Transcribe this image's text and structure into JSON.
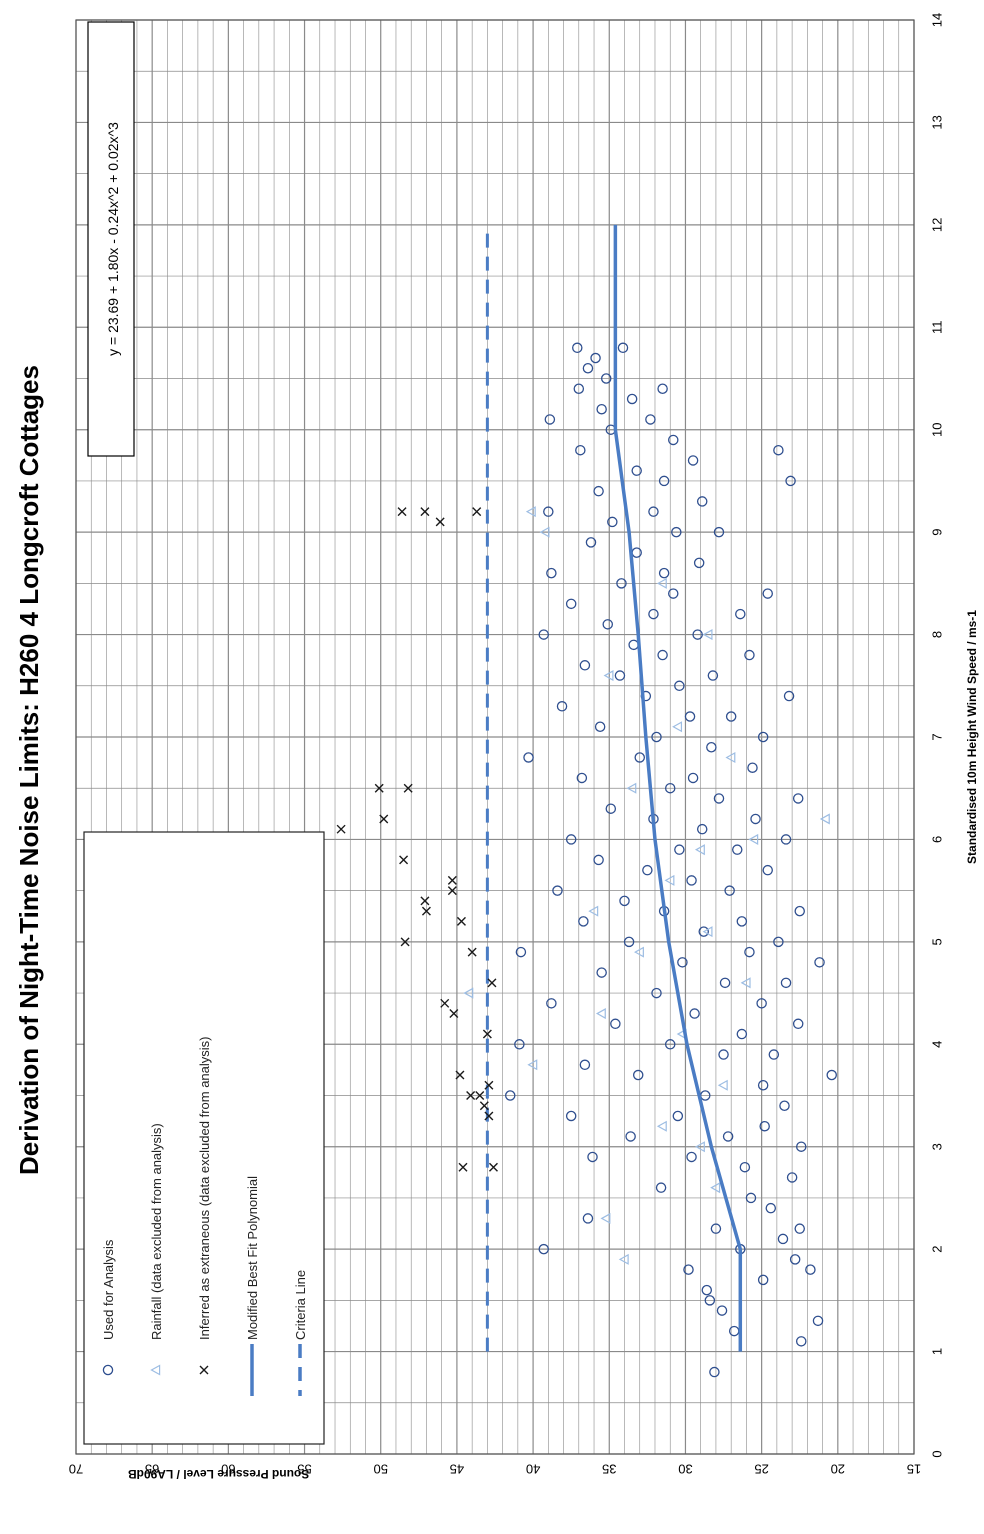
{
  "chart_data": {
    "type": "scatter",
    "title": "Derivation of Night-Time Noise Limits: H260 4 Longcroft Cottages",
    "xlabel": "Standardised  10m Height Wind Speed / ms-1",
    "ylabel": "Sound Pressure Level / LA90dB",
    "xlim": [
      0,
      14
    ],
    "ylim": [
      15,
      70
    ],
    "x_ticks": [
      "0",
      "1",
      "2",
      "3",
      "4",
      "5",
      "6",
      "7",
      "8",
      "9",
      "10",
      "11",
      "12",
      "13",
      "14"
    ],
    "y_ticks": [
      "70",
      "65",
      "60",
      "55",
      "50",
      "45",
      "40",
      "35",
      "30",
      "25",
      "20",
      "15"
    ],
    "grid": true,
    "equation": "y = 23.69 + 1.80x - 0.24x^2 + 0.02x^3",
    "legend": {
      "placement": "lower-left",
      "entries": [
        {
          "label": "Used for Analysis",
          "marker": "circle"
        },
        {
          "label": "Rainfall (data excluded from analysis)",
          "marker": "triangle"
        },
        {
          "label": "Inferred as extraneous (data excluded from analysis)",
          "marker": "x"
        },
        {
          "label": "Modified Best Fit Polynomial",
          "marker": "solid-line"
        },
        {
          "label": "Criteria Line",
          "marker": "dashed-line"
        }
      ]
    },
    "colors": {
      "used": "#2f4f8f",
      "rainfall": "#9dbde3",
      "extraneous": "#1a1a1a",
      "fit": "#4a7cc4",
      "criteria": "#4a7cc4",
      "grid": "#8a8a8a"
    },
    "series": [
      {
        "name": "Used for Analysis",
        "points": [
          [
            0.8,
            28.1
          ],
          [
            1.1,
            22.4
          ],
          [
            1.2,
            26.8
          ],
          [
            1.3,
            21.3
          ],
          [
            1.4,
            27.6
          ],
          [
            1.5,
            28.4
          ],
          [
            1.6,
            28.6
          ],
          [
            1.7,
            24.9
          ],
          [
            1.8,
            21.8
          ],
          [
            1.8,
            29.8
          ],
          [
            1.9,
            22.8
          ],
          [
            2.0,
            26.4
          ],
          [
            2.0,
            39.3
          ],
          [
            2.1,
            23.6
          ],
          [
            2.2,
            28.0
          ],
          [
            2.2,
            22.5
          ],
          [
            2.3,
            36.4
          ],
          [
            2.4,
            24.4
          ],
          [
            2.5,
            25.7
          ],
          [
            2.6,
            31.6
          ],
          [
            2.7,
            23.0
          ],
          [
            2.8,
            26.1
          ],
          [
            2.9,
            36.1
          ],
          [
            2.9,
            29.6
          ],
          [
            3.0,
            22.4
          ],
          [
            3.1,
            33.6
          ],
          [
            3.1,
            27.2
          ],
          [
            3.2,
            24.8
          ],
          [
            3.3,
            37.5
          ],
          [
            3.3,
            30.5
          ],
          [
            3.4,
            23.5
          ],
          [
            3.5,
            41.5
          ],
          [
            3.5,
            28.7
          ],
          [
            3.6,
            24.9
          ],
          [
            3.7,
            33.1
          ],
          [
            3.7,
            20.4
          ],
          [
            3.8,
            36.6
          ],
          [
            3.9,
            27.5
          ],
          [
            3.9,
            24.2
          ],
          [
            4.0,
            31.0
          ],
          [
            4.0,
            40.9
          ],
          [
            4.1,
            26.3
          ],
          [
            4.2,
            22.6
          ],
          [
            4.2,
            34.6
          ],
          [
            4.3,
            29.4
          ],
          [
            4.4,
            25.0
          ],
          [
            4.4,
            38.8
          ],
          [
            4.5,
            31.9
          ],
          [
            4.6,
            23.4
          ],
          [
            4.6,
            27.4
          ],
          [
            4.7,
            35.5
          ],
          [
            4.8,
            21.2
          ],
          [
            4.8,
            30.2
          ],
          [
            4.9,
            25.8
          ],
          [
            4.9,
            40.8
          ],
          [
            5.0,
            33.7
          ],
          [
            5.0,
            23.9
          ],
          [
            5.1,
            28.8
          ],
          [
            5.2,
            36.7
          ],
          [
            5.2,
            26.3
          ],
          [
            5.3,
            31.4
          ],
          [
            5.3,
            22.5
          ],
          [
            5.4,
            34.0
          ],
          [
            5.5,
            27.1
          ],
          [
            5.5,
            38.4
          ],
          [
            5.6,
            29.6
          ],
          [
            5.7,
            24.6
          ],
          [
            5.7,
            32.5
          ],
          [
            5.8,
            35.7
          ],
          [
            5.9,
            26.6
          ],
          [
            5.9,
            30.4
          ],
          [
            6.0,
            23.4
          ],
          [
            6.0,
            37.5
          ],
          [
            6.1,
            28.9
          ],
          [
            6.2,
            32.1
          ],
          [
            6.2,
            25.4
          ],
          [
            6.3,
            34.9
          ],
          [
            6.4,
            27.8
          ],
          [
            6.4,
            22.6
          ],
          [
            6.5,
            31.0
          ],
          [
            6.6,
            36.8
          ],
          [
            6.6,
            29.5
          ],
          [
            6.7,
            25.6
          ],
          [
            6.8,
            33.0
          ],
          [
            6.8,
            40.3
          ],
          [
            6.9,
            28.3
          ],
          [
            7.0,
            31.9
          ],
          [
            7.0,
            24.9
          ],
          [
            7.1,
            35.6
          ],
          [
            7.2,
            29.7
          ],
          [
            7.2,
            27.0
          ],
          [
            7.3,
            38.1
          ],
          [
            7.4,
            32.6
          ],
          [
            7.4,
            23.2
          ],
          [
            7.5,
            30.4
          ],
          [
            7.6,
            34.3
          ],
          [
            7.6,
            28.2
          ],
          [
            7.7,
            36.6
          ],
          [
            7.8,
            31.5
          ],
          [
            7.8,
            25.8
          ],
          [
            7.9,
            33.4
          ],
          [
            8.0,
            39.3
          ],
          [
            8.0,
            29.2
          ],
          [
            8.1,
            35.1
          ],
          [
            8.2,
            32.1
          ],
          [
            8.2,
            26.4
          ],
          [
            8.3,
            37.5
          ],
          [
            8.4,
            30.8
          ],
          [
            8.4,
            24.6
          ],
          [
            8.5,
            34.2
          ],
          [
            8.6,
            31.4
          ],
          [
            8.6,
            38.8
          ],
          [
            8.7,
            29.1
          ],
          [
            8.8,
            33.2
          ],
          [
            8.9,
            36.2
          ],
          [
            9.0,
            30.6
          ],
          [
            9.0,
            27.8
          ],
          [
            9.1,
            34.8
          ],
          [
            9.2,
            39.0
          ],
          [
            9.2,
            32.1
          ],
          [
            9.3,
            28.9
          ],
          [
            9.4,
            35.7
          ],
          [
            9.5,
            31.4
          ],
          [
            9.5,
            23.1
          ],
          [
            9.6,
            33.2
          ],
          [
            9.7,
            29.5
          ],
          [
            9.8,
            36.9
          ],
          [
            9.8,
            23.9
          ],
          [
            9.9,
            30.8
          ],
          [
            10.0,
            34.9
          ],
          [
            10.1,
            32.3
          ],
          [
            10.1,
            38.9
          ],
          [
            10.2,
            35.5
          ],
          [
            10.3,
            33.5
          ],
          [
            10.4,
            31.5
          ],
          [
            10.4,
            37.0
          ],
          [
            10.5,
            35.2
          ],
          [
            10.6,
            36.4
          ],
          [
            10.7,
            35.9
          ],
          [
            10.8,
            34.1
          ],
          [
            10.8,
            37.1
          ]
        ]
      },
      {
        "name": "Rainfall (data excluded from analysis)",
        "points": [
          [
            1.9,
            34.0
          ],
          [
            2.3,
            35.2
          ],
          [
            2.6,
            28.0
          ],
          [
            3.0,
            29.0
          ],
          [
            3.2,
            31.5
          ],
          [
            3.6,
            27.5
          ],
          [
            3.8,
            40.0
          ],
          [
            4.1,
            30.2
          ],
          [
            4.3,
            35.5
          ],
          [
            4.5,
            44.2
          ],
          [
            4.6,
            26.0
          ],
          [
            4.9,
            33.0
          ],
          [
            5.1,
            28.5
          ],
          [
            5.3,
            36.0
          ],
          [
            5.6,
            31.0
          ],
          [
            5.9,
            29.0
          ],
          [
            6.0,
            25.5
          ],
          [
            6.2,
            20.8
          ],
          [
            6.5,
            33.5
          ],
          [
            6.8,
            27.0
          ],
          [
            7.1,
            30.5
          ],
          [
            7.6,
            35.0
          ],
          [
            8.0,
            28.5
          ],
          [
            8.5,
            31.5
          ],
          [
            9.0,
            39.2
          ],
          [
            9.2,
            40.1
          ]
        ]
      },
      {
        "name": "Inferred as extraneous (data excluded from analysis)",
        "points": [
          [
            2.8,
            44.6
          ],
          [
            2.8,
            42.6
          ],
          [
            3.3,
            42.9
          ],
          [
            3.4,
            43.2
          ],
          [
            3.5,
            43.5
          ],
          [
            3.5,
            44.1
          ],
          [
            3.6,
            42.9
          ],
          [
            3.7,
            44.8
          ],
          [
            4.1,
            43.0
          ],
          [
            4.3,
            45.2
          ],
          [
            4.4,
            45.8
          ],
          [
            4.6,
            42.7
          ],
          [
            4.9,
            44.0
          ],
          [
            5.0,
            48.4
          ],
          [
            5.2,
            44.7
          ],
          [
            5.3,
            47.0
          ],
          [
            5.4,
            47.1
          ],
          [
            5.5,
            45.3
          ],
          [
            5.6,
            45.3
          ],
          [
            5.8,
            48.5
          ],
          [
            6.1,
            52.6
          ],
          [
            6.2,
            49.8
          ],
          [
            6.5,
            50.1
          ],
          [
            6.5,
            48.2
          ],
          [
            9.1,
            46.1
          ],
          [
            9.2,
            43.7
          ],
          [
            9.2,
            47.1
          ],
          [
            9.2,
            48.6
          ]
        ]
      },
      {
        "name": "Modified Best Fit Polynomial",
        "points": [
          [
            1,
            26.4
          ],
          [
            2,
            26.4
          ],
          [
            3,
            28.3
          ],
          [
            4,
            29.9
          ],
          [
            5,
            31.1
          ],
          [
            6,
            32.0
          ],
          [
            7,
            32.6
          ],
          [
            8,
            33.1
          ],
          [
            9,
            33.7
          ],
          [
            10,
            34.6
          ],
          [
            11,
            34.6
          ],
          [
            12,
            34.6
          ]
        ]
      },
      {
        "name": "Criteria Line",
        "points": [
          [
            1,
            43.0
          ],
          [
            12,
            43.0
          ]
        ]
      }
    ]
  }
}
